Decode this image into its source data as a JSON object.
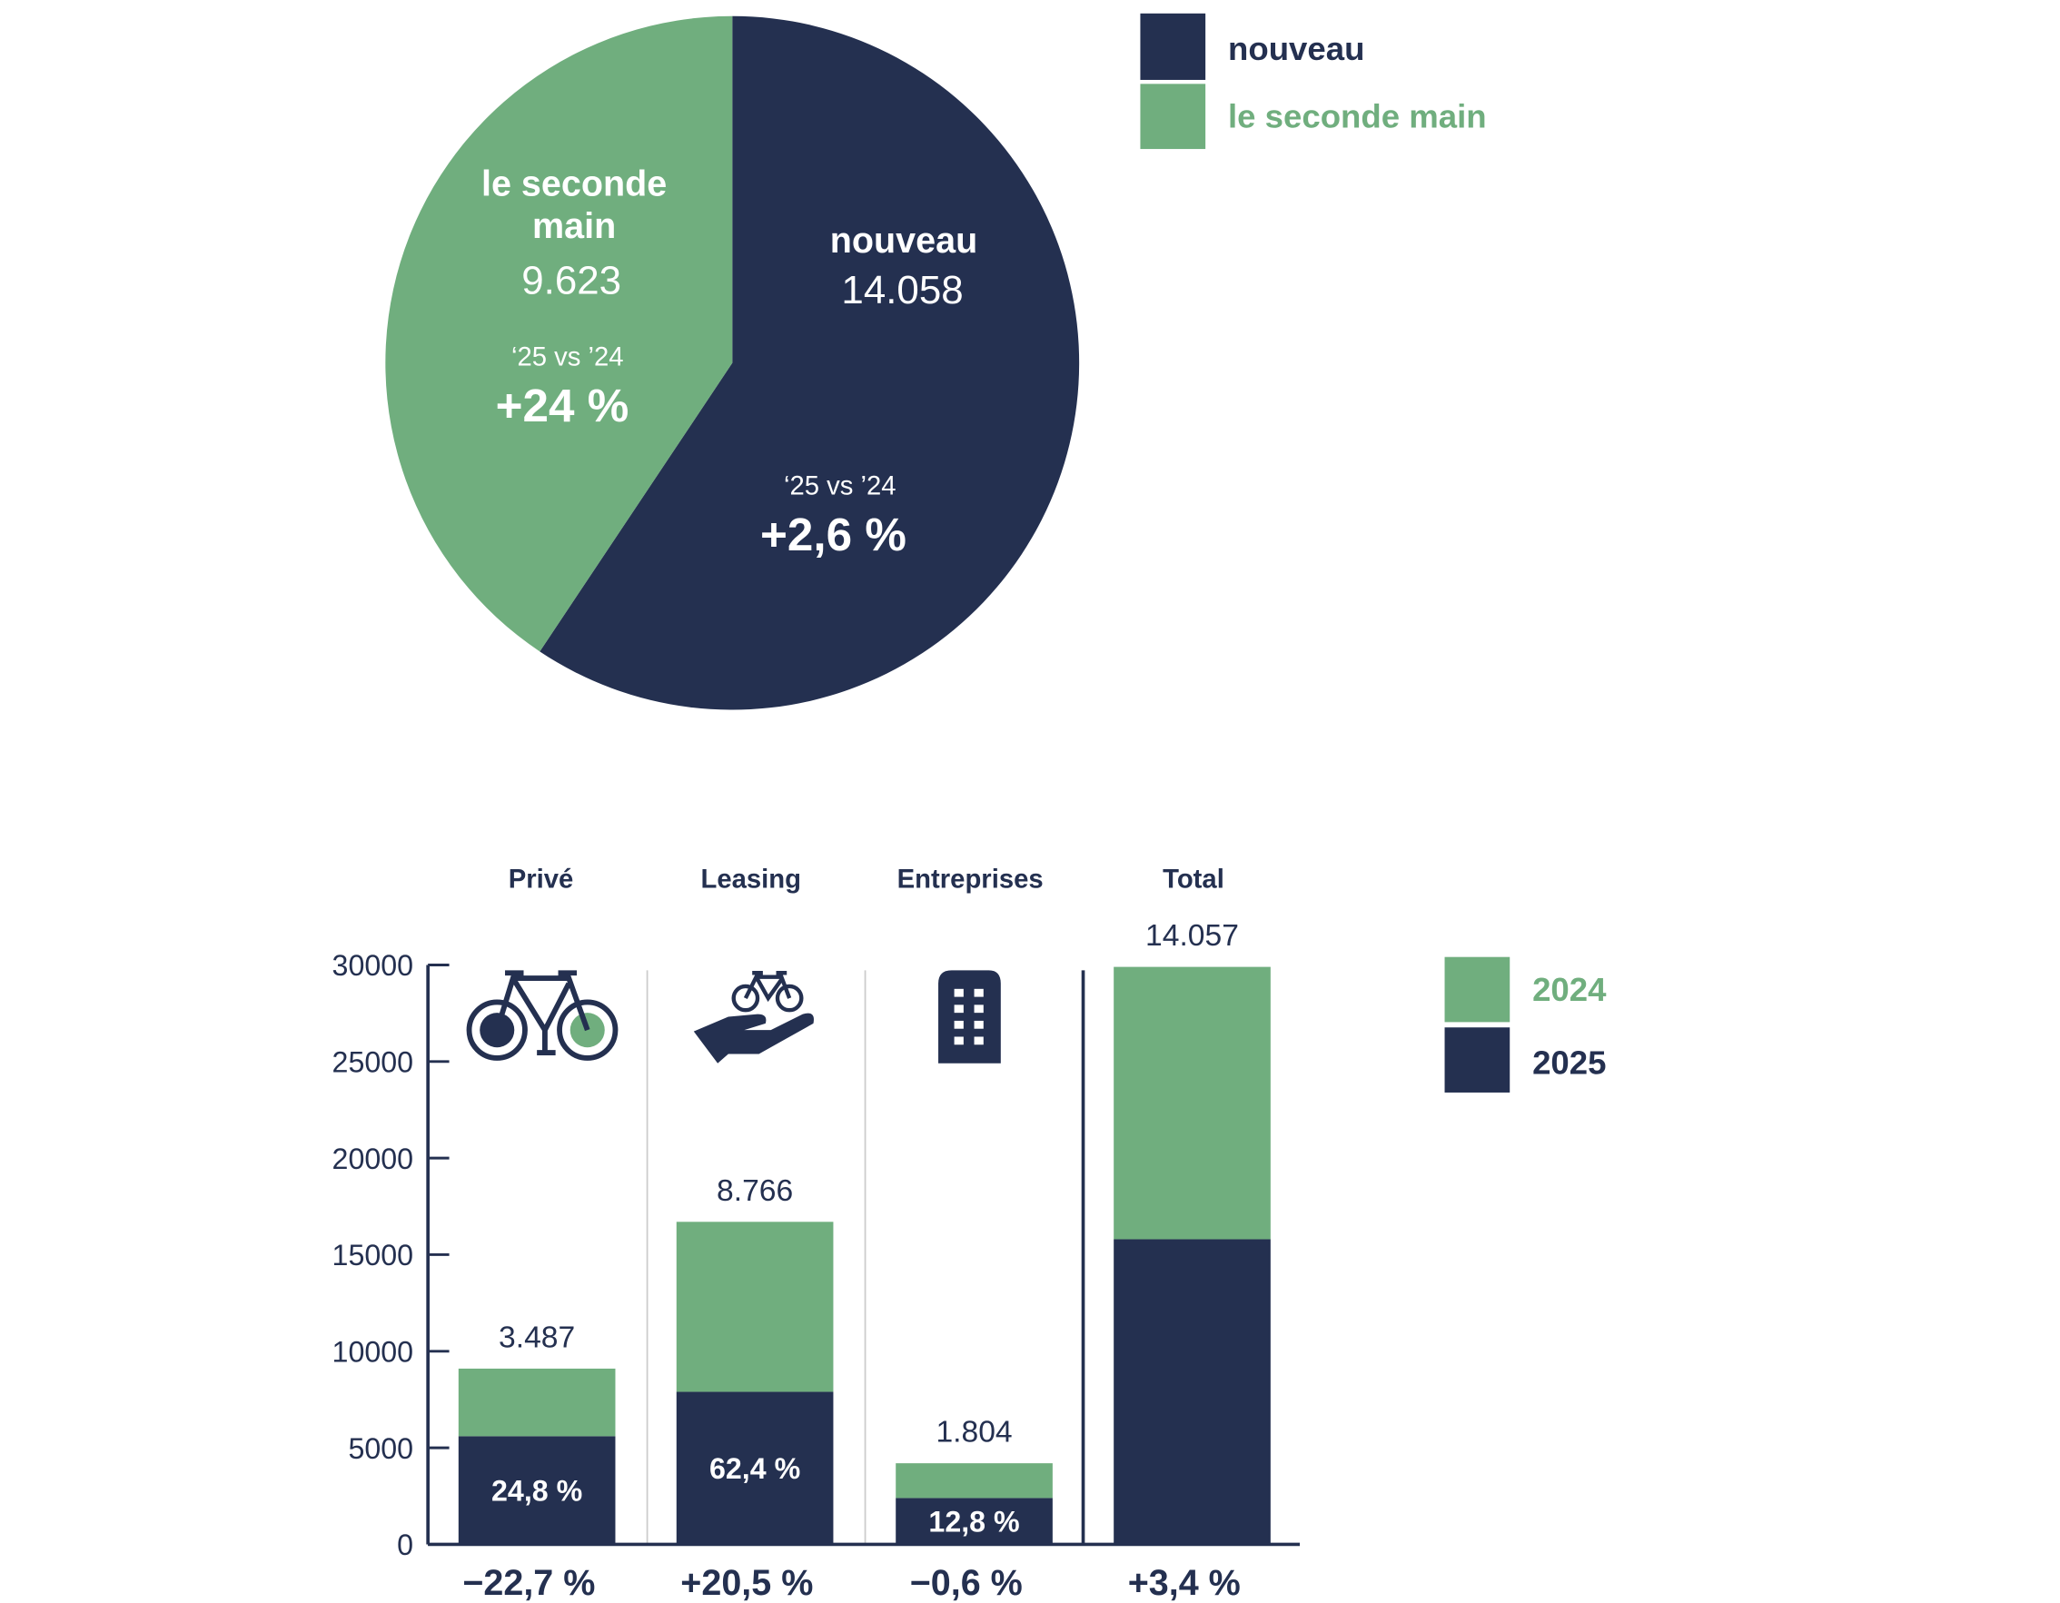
{
  "colors": {
    "navy": "#243050",
    "green": "#70AE7E",
    "grid": "#cccccc"
  },
  "chart_data": [
    {
      "type": "pie",
      "legend": [
        "nouveau",
        "le seconde main"
      ],
      "legend_placement": "top-right",
      "slices": [
        {
          "name": "nouveau",
          "label": "nouveau",
          "value": 14058,
          "value_label": "14.058",
          "compare_label": "‘25 vs ’24",
          "change": "+2,6 %",
          "color": "#243050"
        },
        {
          "name": "le seconde main",
          "label_line1": "le seconde",
          "label_line2": "main",
          "value": 9623,
          "value_label": "9.623",
          "compare_label": "‘25 vs ’24",
          "change": "+24 %",
          "color": "#70AE7E"
        }
      ]
    },
    {
      "type": "bar",
      "stacked": true,
      "categories": [
        "Privé",
        "Leasing",
        "Entreprises",
        "Total"
      ],
      "category_icons": [
        "bicycle-icon",
        "hand-bicycle-icon",
        "building-icon",
        ""
      ],
      "ylim": [
        0,
        30000
      ],
      "yticks": [
        "0",
        "5000",
        "10000",
        "15000",
        "20000",
        "25000",
        "30000"
      ],
      "legend": [
        "2024",
        "2025"
      ],
      "legend_placement": "right",
      "series": [
        {
          "name": "2025",
          "color": "#243050",
          "values": [
            5600,
            7900,
            2400,
            15800
          ]
        },
        {
          "name": "2024",
          "color": "#70AE7E",
          "values": [
            3500,
            8800,
            1800,
            14100
          ]
        }
      ],
      "top_labels": [
        "3.487",
        "8.766",
        "1.804",
        "14.057"
      ],
      "inner_labels": [
        "24,8 %",
        "62,4 %",
        "12,8 %",
        ""
      ],
      "change_labels": [
        "−22,7 %",
        "+20,5 %",
        "−0,6 %",
        "+3,4 %"
      ]
    }
  ]
}
